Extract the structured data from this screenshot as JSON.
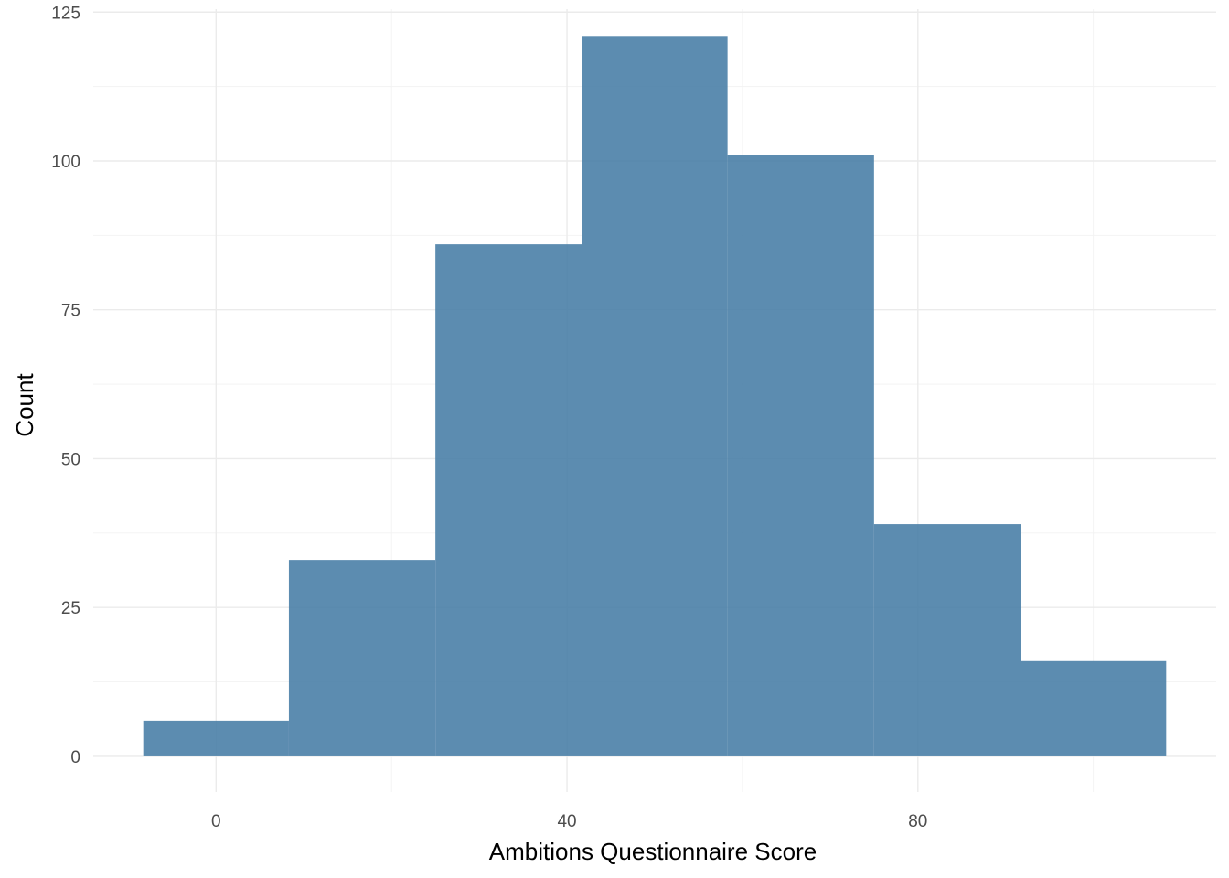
{
  "chart_data": {
    "type": "bar",
    "subtype": "histogram",
    "title": "",
    "xlabel": "Ambitions Questionnaire Score",
    "ylabel": "Count",
    "bins": [
      {
        "x0": -8.3,
        "x1": 8.3,
        "count": 6
      },
      {
        "x0": 8.3,
        "x1": 25,
        "count": 33
      },
      {
        "x0": 25,
        "x1": 41.7,
        "count": 86
      },
      {
        "x0": 41.7,
        "x1": 58.3,
        "count": 121
      },
      {
        "x0": 58.3,
        "x1": 75,
        "count": 101
      },
      {
        "x0": 75,
        "x1": 91.7,
        "count": 39
      },
      {
        "x0": 91.7,
        "x1": 108.3,
        "count": 16
      }
    ],
    "xlim": [
      -14,
      114
    ],
    "ylim": [
      -6,
      125.5
    ],
    "x_ticks": [
      0,
      40,
      80
    ],
    "x_minor_ticks": [
      20,
      60,
      100
    ],
    "y_ticks": [
      0,
      25,
      50,
      75,
      100,
      125
    ],
    "y_minor_ticks": [
      12.5,
      37.5,
      62.5,
      87.5,
      112.5
    ],
    "grid": true,
    "bar_color": "#4a7fa7",
    "bar_opacity": 0.9
  }
}
